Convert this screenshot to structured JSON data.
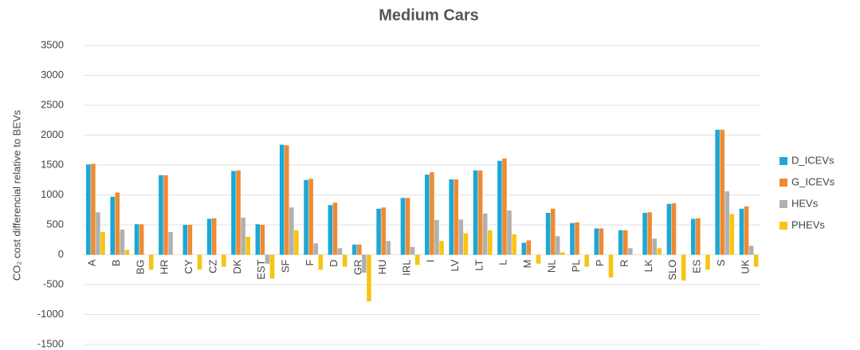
{
  "chart_data": {
    "type": "bar",
    "title": "Medium Cars",
    "y_label": "CO₂ cost differencial relative to BEVs",
    "categories": [
      "A",
      "B",
      "BG",
      "HR",
      "CY",
      "CZ",
      "DK",
      "EST",
      "SF",
      "F",
      "D",
      "GR",
      "HU",
      "IRL",
      "I",
      "LV",
      "LT",
      "L",
      "M",
      "NL",
      "PL",
      "P",
      "R",
      "LK",
      "SLO",
      "ES",
      "S",
      "UK"
    ],
    "series": [
      {
        "name": "D_ICEVs",
        "color": "#1ba8d4",
        "values": [
          1510,
          970,
          510,
          1330,
          500,
          600,
          1400,
          510,
          1840,
          1250,
          830,
          170,
          770,
          950,
          1340,
          1260,
          1410,
          1570,
          200,
          700,
          530,
          440,
          410,
          700,
          850,
          600,
          2090,
          770
        ]
      },
      {
        "name": "G_ICEVs",
        "color": "#ef8a33",
        "values": [
          1520,
          1040,
          510,
          1330,
          500,
          610,
          1410,
          500,
          1830,
          1270,
          870,
          170,
          790,
          950,
          1380,
          1260,
          1410,
          1610,
          240,
          770,
          540,
          440,
          410,
          710,
          860,
          610,
          2090,
          810
        ]
      },
      {
        "name": "HEVs",
        "color": "#b0b0b0",
        "values": [
          710,
          420,
          0,
          380,
          0,
          0,
          620,
          -150,
          790,
          190,
          110,
          -300,
          230,
          130,
          580,
          590,
          690,
          740,
          0,
          310,
          0,
          0,
          110,
          270,
          0,
          0,
          1060,
          150
        ]
      },
      {
        "name": "PHEVs",
        "color": "#f6c511",
        "values": [
          380,
          80,
          -250,
          0,
          -250,
          -200,
          300,
          -400,
          410,
          -250,
          -200,
          -780,
          0,
          -170,
          230,
          360,
          410,
          340,
          -150,
          40,
          -200,
          -380,
          0,
          110,
          -430,
          -250,
          680,
          -200
        ]
      }
    ],
    "ylim": [
      -1500,
      3500
    ],
    "yticks": [
      -1500,
      -1000,
      -500,
      0,
      500,
      1000,
      1500,
      2000,
      2500,
      3000,
      3500
    ],
    "grid": true,
    "legend": "right"
  }
}
